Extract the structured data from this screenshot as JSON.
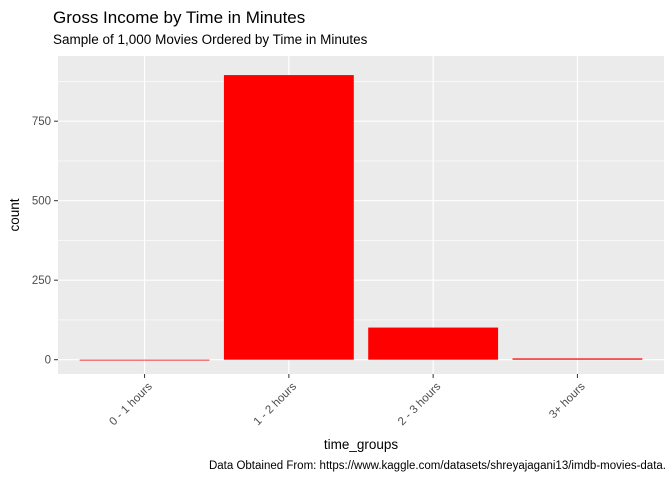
{
  "chart_data": {
    "type": "bar",
    "title": "Gross Income by Time in Minutes",
    "subtitle": "Sample of 1,000 Movies Ordered by Time in Minutes",
    "caption": "Data Obtained From: https://www.kaggle.com/datasets/shreyajagani13/imdb-movies-data.",
    "xlabel": "time_groups",
    "ylabel": "count",
    "categories": [
      "0 - 1 hours",
      "1 - 2 hours",
      "2 - 3 hours",
      "3+ hours"
    ],
    "values": [
      0,
      895,
      101,
      4
    ],
    "ylim": [
      -45,
      955
    ],
    "yticks": [
      0,
      250,
      500,
      750
    ],
    "grid": true,
    "bar_color": "#ff0000",
    "panel_background": "#ebebeb",
    "grid_color": "#ffffff"
  }
}
